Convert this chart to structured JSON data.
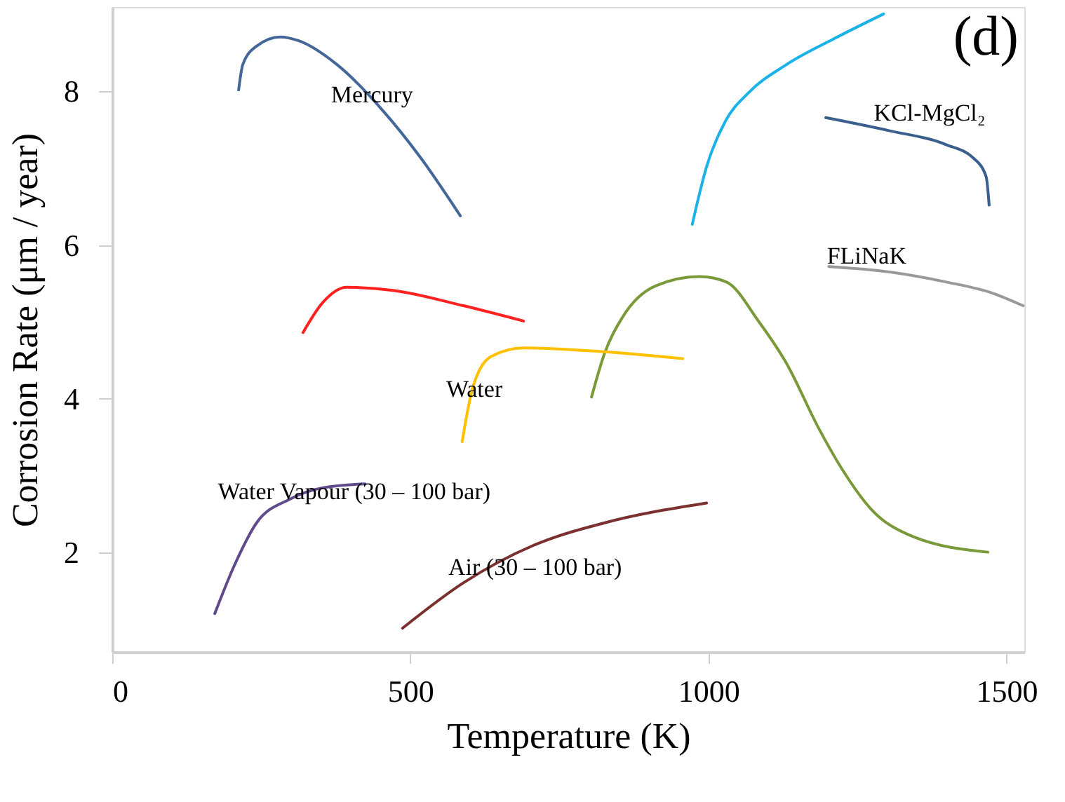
{
  "chart_data": {
    "type": "line",
    "xlabel": "Temperature (K)",
    "ylabel": "Corrosion Rate (μm / year)",
    "xlim": [
      0,
      1530
    ],
    "xticks": [
      0,
      500,
      1000,
      1500
    ],
    "ylim": [
      0.7,
      9.1
    ],
    "yticks": [
      2,
      4,
      6,
      8
    ],
    "grid": false,
    "legend": false,
    "marker": "none",
    "line_style": "solid",
    "annotations": [
      "(d)"
    ],
    "series": [
      {
        "name": "Mercury",
        "color": "#44679a",
        "x": [
          212,
          219,
          242,
          282,
          313,
          377,
          454,
          518,
          584
        ],
        "values": [
          8.02,
          8.35,
          8.59,
          8.71,
          8.66,
          8.35,
          7.75,
          7.13,
          6.38
        ]
      },
      {
        "color": "#1ab2e8",
        "x": [
          973,
          997,
          1029,
          1067,
          1131,
          1209,
          1294
        ],
        "values": [
          6.27,
          7.02,
          7.62,
          7.98,
          8.35,
          8.68,
          9.01
        ]
      },
      {
        "name": "KCl-MgCl₂",
        "color": "#3a5f8f",
        "x": [
          1197,
          1303,
          1398,
          1445,
          1466,
          1471
        ],
        "values": [
          7.66,
          7.49,
          7.31,
          7.13,
          6.89,
          6.52
        ]
      },
      {
        "name": "FLiNaK",
        "color": "#999999",
        "x": [
          1202,
          1303,
          1398,
          1478,
          1528
        ],
        "values": [
          5.72,
          5.65,
          5.52,
          5.37,
          5.21
        ]
      },
      {
        "color": "#7a9a3a",
        "x": [
          804,
          825,
          856,
          912,
          985,
          1030,
          1084,
          1131,
          1186,
          1226,
          1273,
          1344,
          1469
        ],
        "values": [
          4.02,
          4.57,
          5.06,
          5.47,
          5.59,
          5.52,
          5.01,
          4.46,
          3.6,
          3.06,
          2.56,
          2.2,
          2.0
        ]
      },
      {
        "color": "#ff2020",
        "x": [
          320,
          353,
          393,
          471,
          589,
          690
        ],
        "values": [
          4.86,
          5.25,
          5.45,
          5.41,
          5.21,
          5.01
        ]
      },
      {
        "name": "Water",
        "color": "#ffc000",
        "x": [
          587,
          605,
          636,
          690,
          825,
          957
        ],
        "values": [
          3.44,
          4.15,
          4.55,
          4.66,
          4.61,
          4.52
        ]
      },
      {
        "name": "Water Vapour (30 – 100 bar)",
        "color": "#5f4b8b",
        "x": [
          172,
          205,
          242,
          298,
          354,
          424
        ],
        "values": [
          1.2,
          1.83,
          2.38,
          2.69,
          2.84,
          2.89
        ]
      },
      {
        "name": "Air (30 – 100 bar)",
        "color": "#7b3030",
        "x": [
          487,
          589,
          707,
          825,
          997
        ],
        "values": [
          1.01,
          1.6,
          2.09,
          2.38,
          2.64
        ]
      }
    ]
  }
}
